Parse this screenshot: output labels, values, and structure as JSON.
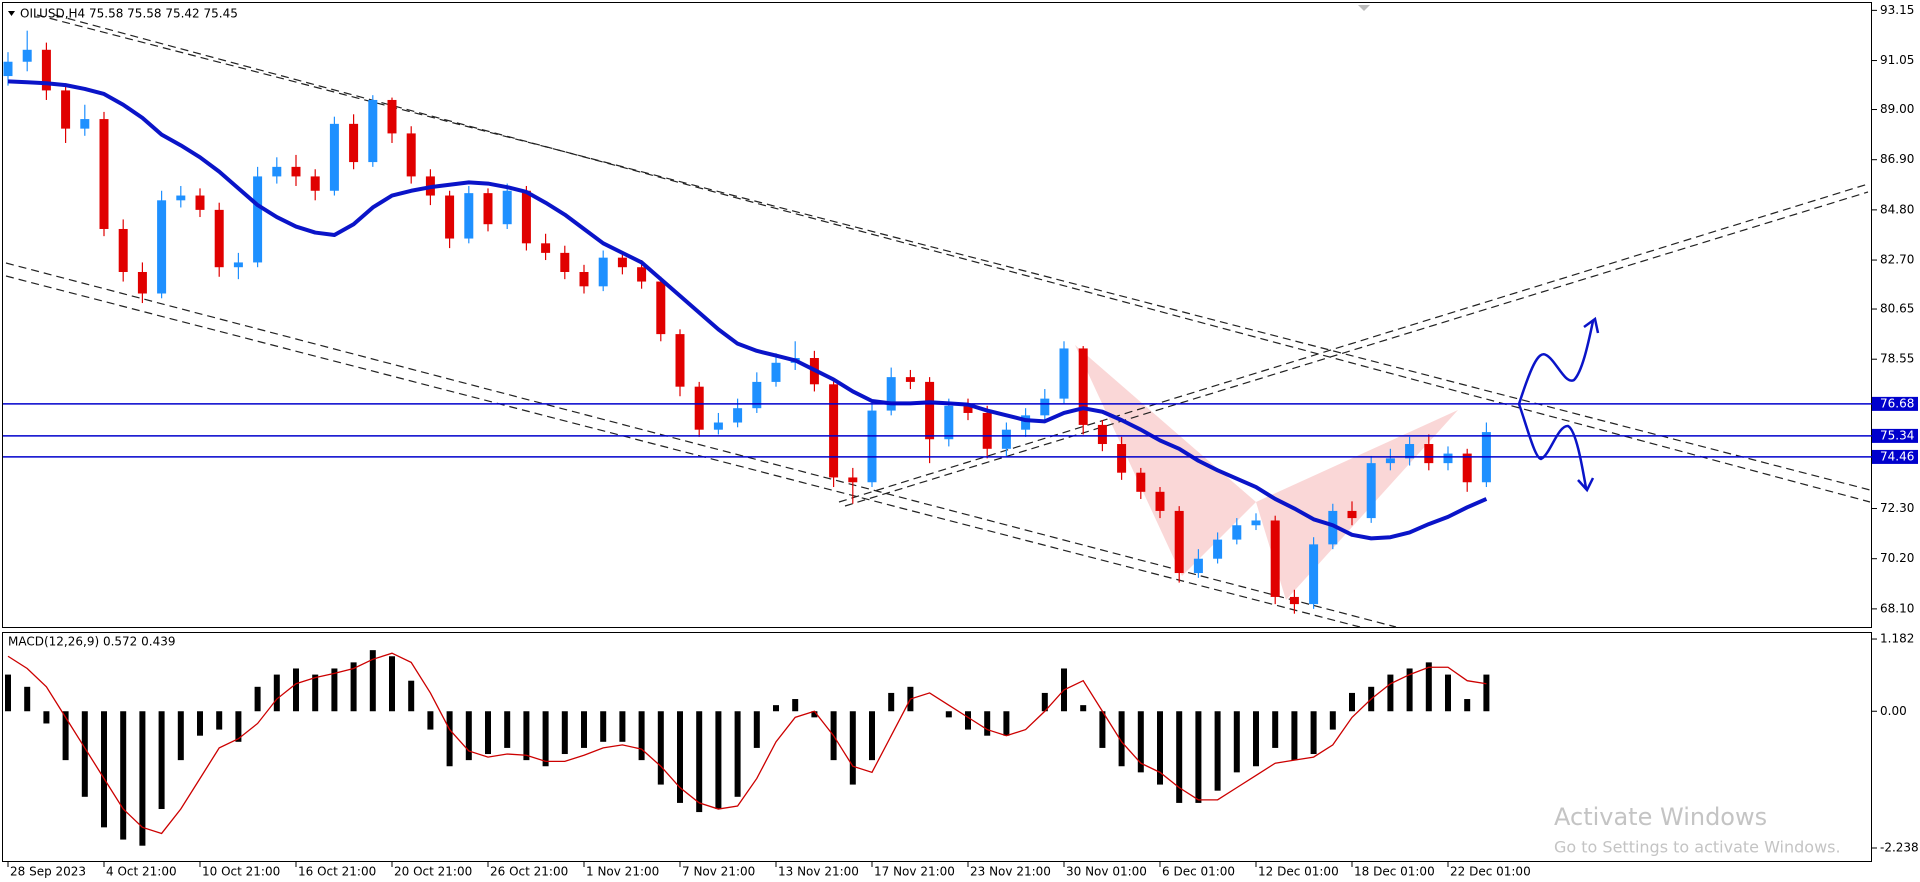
{
  "chart_data": [
    {
      "type": "candlestick",
      "title": "OILUSD,H4 75.58 75.58 75.42 75.45",
      "categories": [
        "28 Sep 2023",
        null,
        null,
        null,
        null,
        "4 Oct 21:00",
        null,
        null,
        null,
        null,
        "10 Oct 21:00",
        null,
        null,
        null,
        null,
        "16 Oct 21:00",
        null,
        null,
        null,
        null,
        "20 Oct 21:00",
        null,
        null,
        null,
        null,
        "26 Oct 21:00",
        null,
        null,
        null,
        null,
        "1 Nov 21:00",
        null,
        null,
        null,
        null,
        "7 Nov 21:00",
        null,
        null,
        null,
        null,
        "13 Nov 21:00",
        null,
        null,
        null,
        null,
        "17 Nov 21:00",
        null,
        null,
        null,
        null,
        "23 Nov 21:00",
        null,
        null,
        null,
        null,
        "30 Nov 01:00",
        null,
        null,
        null,
        null,
        "6 Dec 01:00",
        null,
        null,
        null,
        null,
        "12 Dec 01:00",
        null,
        null,
        null,
        null,
        "18 Dec 01:00",
        null,
        null,
        null,
        null,
        "22 Dec 01:00",
        null,
        null
      ],
      "open": [
        90.4,
        91.0,
        91.5,
        89.8,
        88.2,
        88.6,
        84.0,
        82.2,
        81.3,
        85.2,
        85.4,
        84.8,
        82.4,
        82.6,
        86.2,
        86.6,
        86.2,
        85.6,
        88.4,
        86.8,
        89.4,
        88.0,
        86.2,
        85.4,
        83.6,
        85.5,
        84.2,
        85.6,
        83.4,
        83.0,
        82.2,
        81.6,
        82.8,
        82.4,
        81.8,
        79.6,
        77.4,
        75.6,
        75.9,
        76.5,
        77.6,
        78.4,
        78.6,
        77.5,
        73.6,
        73.4,
        76.4,
        77.8,
        77.6,
        75.2,
        76.6,
        76.3,
        74.8,
        75.6,
        76.2,
        76.9,
        79.0,
        75.8,
        75.0,
        73.8,
        73.0,
        72.2,
        69.6,
        70.2,
        71.0,
        71.6,
        71.8,
        68.6,
        68.3,
        70.8,
        72.2,
        71.9,
        74.2,
        74.4,
        75.0,
        74.2,
        74.6,
        73.4
      ],
      "high": [
        91.4,
        92.3,
        91.8,
        90.1,
        89.2,
        88.9,
        84.4,
        82.6,
        85.6,
        85.8,
        85.7,
        85.1,
        83.0,
        86.6,
        87.0,
        87.1,
        86.5,
        88.7,
        88.8,
        89.6,
        89.5,
        88.3,
        86.5,
        85.6,
        85.8,
        85.7,
        85.9,
        85.8,
        83.8,
        83.3,
        82.5,
        83.1,
        83.0,
        82.7,
        82.0,
        79.8,
        77.6,
        76.3,
        76.9,
        78.0,
        78.8,
        79.3,
        78.9,
        77.7,
        74.0,
        76.8,
        78.2,
        78.1,
        77.8,
        76.9,
        76.9,
        76.6,
        75.9,
        76.5,
        77.3,
        79.3,
        79.1,
        76.0,
        75.3,
        74.0,
        73.2,
        72.4,
        70.6,
        71.3,
        71.9,
        72.1,
        72.0,
        68.9,
        71.1,
        72.5,
        72.6,
        74.5,
        74.8,
        75.3,
        75.4,
        74.9,
        74.8,
        75.9
      ],
      "low": [
        90.0,
        90.6,
        89.4,
        87.6,
        87.9,
        83.7,
        81.8,
        80.9,
        81.1,
        84.9,
        84.5,
        82.0,
        81.9,
        82.4,
        85.9,
        85.8,
        85.2,
        85.4,
        86.5,
        86.6,
        87.6,
        85.9,
        85.0,
        83.2,
        83.4,
        83.9,
        84.0,
        83.1,
        82.7,
        81.9,
        81.3,
        81.4,
        82.1,
        81.5,
        79.3,
        77.0,
        75.3,
        75.4,
        75.7,
        76.3,
        77.4,
        78.1,
        77.2,
        73.2,
        72.5,
        73.2,
        76.2,
        77.3,
        74.2,
        74.9,
        76.0,
        74.4,
        74.5,
        75.3,
        75.9,
        76.7,
        75.4,
        74.7,
        73.5,
        72.7,
        71.9,
        69.2,
        69.4,
        70.0,
        70.8,
        71.4,
        68.3,
        67.9,
        68.1,
        70.6,
        71.6,
        71.7,
        73.9,
        74.1,
        73.9,
        73.9,
        73.0,
        73.2
      ],
      "close": [
        91.0,
        91.5,
        89.8,
        88.2,
        88.6,
        84.0,
        82.2,
        81.3,
        85.2,
        85.4,
        84.8,
        82.4,
        82.6,
        86.2,
        86.6,
        86.2,
        85.6,
        88.4,
        86.8,
        89.4,
        88.0,
        86.2,
        85.4,
        83.6,
        85.5,
        84.2,
        85.6,
        83.4,
        83.0,
        82.2,
        81.6,
        82.8,
        82.4,
        81.8,
        79.6,
        77.4,
        75.6,
        75.9,
        76.5,
        77.6,
        78.4,
        78.6,
        77.5,
        73.6,
        73.4,
        76.4,
        77.8,
        77.6,
        75.2,
        76.6,
        76.3,
        74.8,
        75.6,
        76.2,
        76.9,
        79.0,
        75.8,
        75.0,
        73.8,
        73.0,
        72.2,
        69.6,
        70.2,
        71.0,
        71.6,
        71.8,
        68.6,
        68.3,
        70.8,
        72.2,
        71.9,
        74.2,
        74.4,
        75.0,
        74.2,
        74.6,
        73.4,
        75.5
      ],
      "up_color": "#1e90ff",
      "down_color": "#e00000",
      "overlay": {
        "color": "#0a14c8",
        "values": [
          90.18,
          90.14,
          90.1,
          90.02,
          89.86,
          89.65,
          89.2,
          88.65,
          87.95,
          87.5,
          87.0,
          86.4,
          85.7,
          85.0,
          84.5,
          84.1,
          83.85,
          83.75,
          84.2,
          84.9,
          85.4,
          85.6,
          85.75,
          85.85,
          85.95,
          85.9,
          85.75,
          85.55,
          85.1,
          84.6,
          84.0,
          83.4,
          83.0,
          82.6,
          81.9,
          81.2,
          80.5,
          79.8,
          79.2,
          78.9,
          78.7,
          78.5,
          78.1,
          77.7,
          77.2,
          76.8,
          76.7,
          76.7,
          76.75,
          76.7,
          76.65,
          76.4,
          76.2,
          76.0,
          75.95,
          76.3,
          76.5,
          76.35,
          76.0,
          75.6,
          75.15,
          74.8,
          74.3,
          73.9,
          73.55,
          73.2,
          72.7,
          72.3,
          71.85,
          71.6,
          71.2,
          71.05,
          71.1,
          71.3,
          71.65,
          71.95,
          72.35,
          72.7
        ]
      },
      "levels": [
        76.68,
        75.34,
        74.46
      ],
      "level_color": "#0000cc",
      "ylim": [
        67.3,
        93.5
      ],
      "yticks": [
        93.15,
        91.05,
        {
          "value": 89,
          "label": "89.00"
        },
        {
          "value": 86.9,
          "label": "86.90"
        },
        {
          "value": 84.8,
          "label": "84.80"
        },
        {
          "value": 82.7,
          "label": "82.70"
        },
        80.65,
        78.55,
        {
          "value": 72.3,
          "label": "72.30"
        },
        {
          "value": 70.2,
          "label": "70.20"
        },
        {
          "value": 68.1,
          "label": "68.10"
        }
      ]
    },
    {
      "type": "macd",
      "title": "MACD(12,26,9) 0.572 0.439",
      "histogram": [
        0.6,
        0.4,
        -0.2,
        -0.8,
        -1.4,
        -1.9,
        -2.1,
        -2.2,
        -1.6,
        -0.8,
        -0.4,
        -0.3,
        -0.5,
        0.4,
        0.6,
        0.7,
        0.6,
        0.7,
        0.8,
        1.0,
        0.9,
        0.5,
        -0.3,
        -0.9,
        -0.8,
        -0.7,
        -0.6,
        -0.8,
        -0.9,
        -0.7,
        -0.6,
        -0.5,
        -0.5,
        -0.8,
        -1.2,
        -1.5,
        -1.65,
        -1.6,
        -1.4,
        -0.6,
        0.1,
        0.2,
        -0.1,
        -0.8,
        -1.2,
        -0.8,
        0.3,
        0.4,
        0.0,
        -0.1,
        -0.3,
        -0.4,
        -0.4,
        0.0,
        0.3,
        0.7,
        0.1,
        -0.6,
        -0.9,
        -1.0,
        -1.2,
        -1.5,
        -1.5,
        -1.3,
        -1.0,
        -0.9,
        -0.6,
        -0.8,
        -0.7,
        -0.3,
        0.3,
        0.4,
        0.6,
        0.7,
        0.8,
        0.6,
        0.2,
        0.6
      ],
      "signal": [
        0.9,
        0.7,
        0.4,
        -0.1,
        -0.6,
        -1.1,
        -1.6,
        -1.9,
        -2.0,
        -1.6,
        -1.1,
        -0.6,
        -0.45,
        -0.2,
        0.2,
        0.45,
        0.55,
        0.62,
        0.7,
        0.85,
        0.95,
        0.8,
        0.3,
        -0.3,
        -0.65,
        -0.75,
        -0.7,
        -0.72,
        -0.82,
        -0.82,
        -0.72,
        -0.6,
        -0.55,
        -0.62,
        -0.9,
        -1.25,
        -1.5,
        -1.6,
        -1.55,
        -1.1,
        -0.5,
        -0.1,
        0.0,
        -0.4,
        -0.9,
        -1.0,
        -0.4,
        0.2,
        0.3,
        0.1,
        -0.1,
        -0.3,
        -0.4,
        -0.3,
        0.0,
        0.35,
        0.5,
        0.0,
        -0.5,
        -0.85,
        -1.0,
        -1.25,
        -1.45,
        -1.45,
        -1.25,
        -1.05,
        -0.85,
        -0.8,
        -0.75,
        -0.55,
        -0.1,
        0.2,
        0.45,
        0.6,
        0.72,
        0.72,
        0.5,
        0.45
      ],
      "hist_color": "#000000",
      "signal_color": "#cc0000",
      "ylim": [
        -2.467,
        1.297
      ],
      "yticks": [
        1.182,
        {
          "value": 0,
          "label": "0.00"
        },
        -2.238
      ]
    }
  ],
  "watermark": {
    "title": "Activate Windows",
    "subtitle": "Go to Settings to activate Windows."
  }
}
